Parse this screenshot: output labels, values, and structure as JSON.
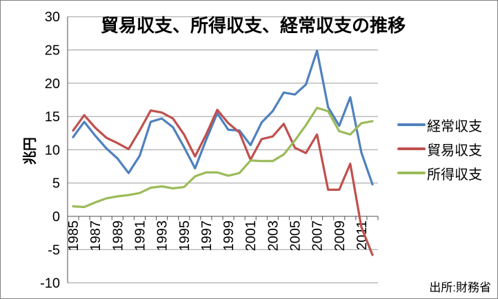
{
  "title": "貿易収支、所得収支、経常収支の推移",
  "y_axis_title": "兆円",
  "source_note": "出所:財務省",
  "colors": {
    "grid": "#9c9c9c",
    "axis": "#4d4d4d",
    "text": "#000000",
    "frame_border": "#7f7f7f"
  },
  "chart_data": {
    "type": "line",
    "x": [
      1985,
      1986,
      1987,
      1988,
      1989,
      1990,
      1991,
      1992,
      1993,
      1994,
      1995,
      1996,
      1997,
      1998,
      1999,
      2000,
      2001,
      2002,
      2003,
      2004,
      2005,
      2006,
      2007,
      2008,
      2009,
      2010,
      2011,
      2012
    ],
    "x_tick_labels": [
      "1985",
      "1987",
      "1989",
      "1991",
      "1993",
      "1995",
      "1997",
      "1999",
      "2001",
      "2003",
      "2005",
      "2007",
      "2009",
      "2011"
    ],
    "y_tick_labels": [
      "30",
      "25",
      "20",
      "15",
      "10",
      "5",
      "0",
      "-5",
      "-10"
    ],
    "ylim": [
      -10,
      30
    ],
    "y_tick_step": 5,
    "grid": true,
    "legend_position": "right",
    "series": [
      {
        "key": "current-account",
        "name": "経常収支",
        "color": "#4f81bd",
        "values": [
          11.9,
          14.2,
          12.1,
          10.2,
          8.7,
          6.5,
          9.1,
          14.2,
          14.7,
          13.4,
          10.4,
          7.2,
          11.5,
          15.5,
          13.0,
          12.9,
          10.7,
          14.1,
          15.8,
          18.6,
          18.3,
          19.8,
          24.9,
          16.4,
          13.6,
          17.9,
          9.6,
          4.8
        ]
      },
      {
        "key": "trade-balance",
        "name": "貿易収支",
        "color": "#c0504d",
        "values": [
          12.9,
          15.2,
          13.3,
          11.8,
          11.0,
          10.1,
          12.9,
          15.9,
          15.6,
          14.7,
          12.3,
          9.0,
          12.3,
          16.0,
          14.0,
          12.6,
          8.5,
          11.6,
          12.0,
          13.9,
          10.3,
          9.5,
          12.3,
          4.0,
          4.0,
          7.9,
          -1.6,
          -5.8
        ]
      },
      {
        "key": "income-balance",
        "name": "所得収支",
        "color": "#9bbb59",
        "values": [
          1.5,
          1.4,
          2.1,
          2.7,
          3.0,
          3.2,
          3.5,
          4.3,
          4.5,
          4.2,
          4.4,
          6.0,
          6.6,
          6.6,
          6.1,
          6.5,
          8.4,
          8.3,
          8.3,
          9.3,
          11.4,
          13.7,
          16.3,
          15.8,
          12.8,
          12.3,
          14.0,
          14.3
        ]
      }
    ]
  }
}
